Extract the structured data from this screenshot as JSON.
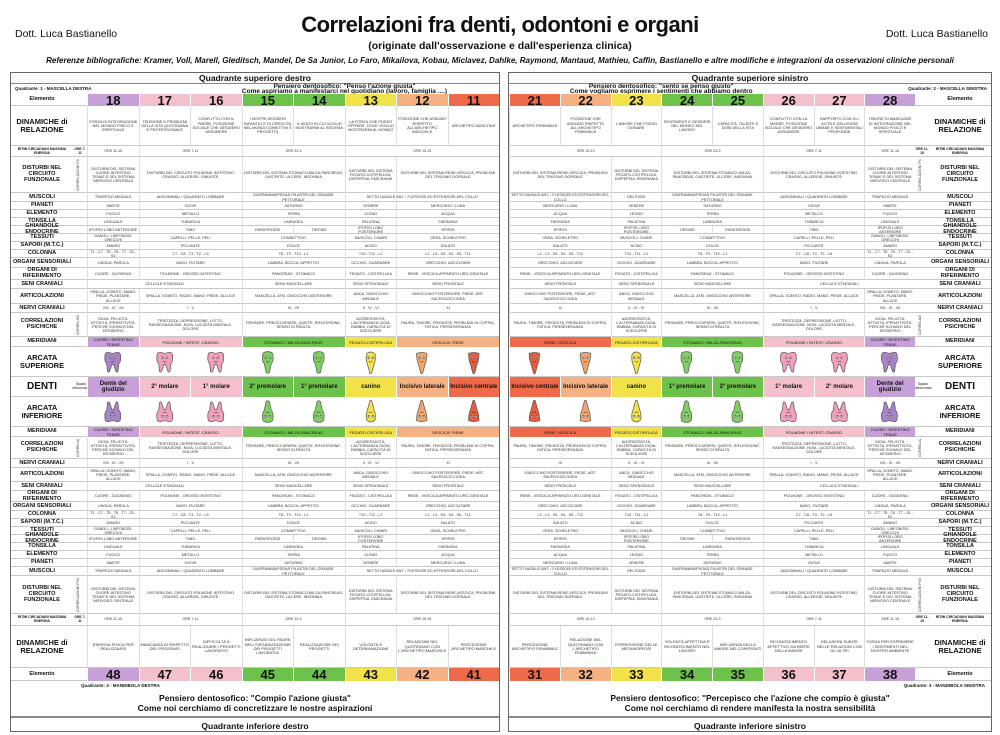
{
  "header": {
    "author_left": "Dott. Luca Bastianello",
    "author_right": "Dott. Luca Bastianello",
    "title": "Correlazioni fra denti, odontoni e organi",
    "subtitle": "(originate dall'osservazione e dall'esperienza clinica)",
    "references": "Referenze bibliografiche: Kramer, Voll, Marell, Gleditsch, Mandel, De Sa Junior, Lo Faro, Mikailova, Kobau, Miclavez, Dahlke, Raymond, Mantaud, Mathieu, Caffin, Bastianello e altre modifiche e integrazioni da osservazioni cliniche personali"
  },
  "colors": {
    "purple": "#c8a0d8",
    "pink": "#f4c0cc",
    "green": "#6cc24a",
    "yellow": "#f2e24a",
    "peach": "#f6b183",
    "red": "#ee6a4a",
    "gray": "#e8e8e8"
  },
  "left": {
    "quadrant_top": "Quadrante superiore destro",
    "quadrant_bottom": "Quadrante inferiore destro",
    "quad_label_top": "Quadrante: 1 - MASCELLA DESTRA",
    "quad_label_bottom": "Quadrante: 4 - MANDIBOLA DESTRA",
    "pens_top_1": "Pensiero dentosofico: \"Penso l'azione giusta\"",
    "pens_top_2": "Come aspiriamo a manifestarci nel quotidiano (lavoro, famiglia ....)",
    "pens_bot_1": "Pensiero dentosofico: \"Compio l'azione giusta\"",
    "pens_bot_2": "Come noi cerchiamo di concretizzare le nostre aspirazioni",
    "upper_numbers": [
      "18",
      "17",
      "16",
      "15",
      "14",
      "13",
      "12",
      "11"
    ],
    "lower_numbers": [
      "48",
      "47",
      "46",
      "45",
      "44",
      "43",
      "42",
      "41"
    ],
    "upper_colors": [
      "purple",
      "pink",
      "pink",
      "green",
      "green",
      "yellow",
      "peach",
      "red"
    ],
    "lower_colors": [
      "purple",
      "pink",
      "pink",
      "green",
      "green",
      "yellow",
      "peach",
      "red"
    ],
    "tooth_names": [
      "Dente del giudizio",
      "2° molare",
      "1° molare",
      "2° premolare",
      "1° premolare",
      "canino",
      "Incisivo laterale",
      "Incisivo centrale"
    ],
    "dinamiche_up": [
      "FORZA DI INTEGRAZIONE NEL MONDO FISICO E SPIRITUALE",
      "TENSIONE E PROBLEMI DELLA VITA QUOTIDIANA E PROFESSIONALE",
      "CONFLITTO CON IL PADRE, POSIZIONE SOCIALE CHE DESIDERO ASSUMERE",
      "I NOSTRI DESIDERI INFANTILI E DI CRESCITA NEL MONDO (OBIETTIVI E PROGETTI)",
      "IL MODO IN CUI VOGLIO MOSTRARMI AL SISTEMA",
      "LA FORZA CHE POSSO OFFRIRE, DOVE VOGLIO MOSTRARMI AL MONDO",
      "POSIZIONE CHE ASSUMO RISPETTO ALL'ARCHETIPO MASCHILE",
      "ARCHETIPO MASCHILE"
    ],
    "dinamiche_low": [
      "ENERGIA FISICA PER REALIZZARSI",
      "MANCANZA DI RISPETTO DEL PROSSIMO",
      "DIFFICOLTÀ A REALIZZARE I PROGETTI LAVORATIVI",
      "INFLUENZE DEL PADRE NELL'ORGANIZZAZIONE DEI PROGETTI LAVORATIVI",
      "REALIZZAZIONE DEI PROGETTI",
      "VOLONTÀ E DETERMINAZIONE",
      "RELAZIONE NEL QUOTIDIANO CON L'ARCHETIPO MASCHILE",
      "PERCEZIONE ARCHETIPO MASCHILE"
    ],
    "meridiani_up": [
      "CUORE / INTESTINO TENUE",
      "POLMONE / INTEST. CRASSO",
      "STOMACO / MILZA-PANCREAS",
      "FEGATO-CISTIFELLEA",
      "VESCICA / RENE"
    ],
    "meridiani_low": [
      "CUORE / INTESTINO TENUE",
      "POLMONE / INTEST. CRASSO",
      "STOMACO / MILZA-PANCREAS",
      "FEGATO-CISTIFELLEA",
      "VESCICA / RENE"
    ],
    "spazio": "Spazio retromolare",
    "elemento": "Elemento"
  },
  "right": {
    "quadrant_top": "Quadrante superiore sinistro",
    "quadrant_bottom": "Quadrante inferiore sinistro",
    "quad_label_top": "Quadrante: 2 - MASCELLA SINISTRA",
    "quad_label_bottom": "Quadrante: 3 - MANDIBOLA SINISTRA",
    "pens_top_1": "Pensiero dentosofico: \"sento se penso giusto\"",
    "pens_top_2": "Come vogliamo esprimere i sentimenti che abbiamo dentro",
    "pens_bot_1": "Pensiero dentosofico: \"Percepisco che l'azione che compio è giusta\"",
    "pens_bot_2": "Come noi cerchiamo di rendere manifesta la nostra sensibilità",
    "upper_numbers": [
      "21",
      "22",
      "23",
      "24",
      "25",
      "26",
      "27",
      "28"
    ],
    "lower_numbers": [
      "31",
      "32",
      "33",
      "34",
      "35",
      "36",
      "37",
      "38"
    ],
    "upper_colors": [
      "red",
      "peach",
      "yellow",
      "green",
      "green",
      "pink",
      "pink",
      "purple"
    ],
    "lower_colors": [
      "red",
      "peach",
      "yellow",
      "green",
      "green",
      "pink",
      "pink",
      "purple"
    ],
    "tooth_names": [
      "Incisivo centrale",
      "Incisivo laterale",
      "canino",
      "1° premolare",
      "2° premolare",
      "1° molare",
      "2° molare",
      "Dente del giudizio"
    ],
    "dinamiche_up": [
      "ARCHETIPO FEMMINILE",
      "POSIZIONE CHE ASSUMO RISPETTO ALL'ARCHETIPO FEMMINILE",
      "L'AMORE CHE POSSO DONARE",
      "SENTIMENTI E DESIDERI NEL MONDO DEL LAVORO",
      "CAPACITÀ, TALENTI E DONI DELLA VITA",
      "CONFLITTO CON LA MADRE, POSIZIONE SOCIALE CHE DESIDERO ASSUMERE",
      "RAPPORTO CON GLI ALTRI E DELUSIONI UMANE E SENTIMENTALI PROFONDE",
      "TIMORE DI MANCANZE DI INTEGRAZIONE NEL MONDO FISICO E SPIRITUALE"
    ],
    "dinamiche_low": [
      "PERCEZIONE ARCHETIPO FEMMINILE",
      "RELAZIONE NEL QUOTIDIANO CON L'ARCHETIPO FEMMINILE",
      "ESPRESSIONE DELLE METAMORFOSI",
      "VOLONTÀ AFFETTIVA E RICONOSCIMENTO NEL LAVORO",
      "INFLUENZA DELLA MADRE NEI CONFRONTI",
      "RICONOSCIMENTO AFFETTIVO DA PARTE DELLA MADRE",
      "DELUSIONI SUBITE NELLE RELAZIONI CON GLI ALTRI",
      "FORZA PER ESPRIMERE I SENTIMENTI NEL NOSTRO AMBIENTE"
    ],
    "meridiani_up": [
      "RENE / VESCICA",
      "FEGATO-CISTIFELLEA",
      "STOMACO / MILZA-PANCREAS",
      "POLMONE / INTEST. CRASSO",
      "CUORE / INTESTINO TENUE"
    ],
    "meridiani_low": [
      "RENE / VESCICA",
      "FEGATO-CISTIFELLEA",
      "STOMACO / MILZA-PANCREAS",
      "POLMONE / INTEST. CRASSO",
      "CUORE / INTESTINO TENUE"
    ],
    "spazio": "Spazio retromolare",
    "elemento": "Elemento"
  },
  "row_labels": {
    "dinamiche": "DINAMICHE di RELAZIONE",
    "ritmi": "RITMI CIRCADIANI MASSIMA ENERGIA",
    "disturbi": "DISTURBI NEL CIRCUITO FUNZIONALE",
    "muscoli": "MUSCOLI",
    "pianeti": "PIANETI",
    "elemento_fisico": "ELEMENTO",
    "tonsilla": "TONSILLA",
    "ghiandole": "GHIANDOLE ENDOCRINE",
    "tessuti": "TESSUTI",
    "sapori": "SAPORI (M.T.C.)",
    "colonna": "COLONNA",
    "organi_sens": "ORGANI SENSORIALI",
    "organi_rif": "ORGANI DI RIFERIMENTO",
    "seni": "SENI CRANIALI",
    "articolazioni": "ARTICOLAZIONI",
    "nervi": "NERVI CRANIALI",
    "correlazioni": "CORRELAZIONI PSICHICHE",
    "meridiani": "MERIDIANI",
    "arcata_sup": "ARCATA SUPERIORE",
    "denti": "DENTI",
    "arcata_inf": "ARCATA INFERIORE"
  },
  "cells": {
    "ore": [
      "ORE 11-15",
      "ORE 7-11",
      "ORE 23-3",
      "ORE 15-19"
    ],
    "ore_r": [
      "ORE 15-19",
      "ORE 23-3",
      "ORE 7-11",
      "ORE 11-15"
    ],
    "muscoli": [
      "TRAPEZIO MEDIALE",
      "ADDOMINALI / QUADRATO LOMBARE",
      "DIAFRAMMA/PSOAS PILASTRI DEL GRANDE PETTORALE",
      "SETTO NASALE ANT. / FLESSORI ED ESTENSORI DEL COLLO"
    ],
    "muscoli_r": [
      "SETTO NASALE ANT. / FLESSORI ED ESTENSORI DEL COLLO",
      "DELTOIDE",
      "DIAFRAMMA/PSOAS PILASTRI DEL GRANDE PETTORALE",
      "ADDOMINALI / QUADRATO LOMBARE",
      "TRAPEZIO MEDIALE"
    ],
    "pianeti": [
      "MARTE",
      "GIOVE",
      "SATURNO",
      "VENERE",
      "MERCURIO / LUNA"
    ],
    "elemento": [
      "FUOCO",
      "METALLO",
      "TERRA",
      "LEGNO",
      "ACQUA"
    ],
    "tonsilla": [
      "LINGUALE",
      "TUBARICA",
      "LARINGEA",
      "PALATINA",
      "FARINGEA"
    ],
    "ghiandole": [
      "IPOFISI LOBO ANTERIORE",
      "TIMO",
      "PARATIROIDE",
      "TIROIDE",
      "IPOFISI LOBO POSTERIORE",
      "EPIFISI"
    ],
    "tessuti": [
      "GANGLI, LINFONODI, ORECCHI",
      "CAPELLI, PELLE, PELI",
      "CONNETTIVO",
      "MUSCOLI, CHIARI",
      "OSSA, SCHELETRO"
    ],
    "sapori": [
      "AMARO",
      "PICCANTE",
      "DOLCE",
      "ACIDO",
      "SALATO"
    ],
    "colonna": [
      "T1 - C7 - T5 - T6 - T7 - S1 - S2",
      "C7 - C8 - T3 - T2 - L5",
      "T8 - T9 - T10 - L1",
      "T10 - T11 - L2",
      "L2 - L3 - S3 - S4 - S5 - T11"
    ],
    "organi_sens": [
      "LINGUA, PAROLA",
      "NASO, FIUTARE",
      "LABBRA, BOCCA, APPETITO",
      "OCCHIO, GUARDARE",
      "ORECCHIO, ASCOLTARE"
    ],
    "organi_rif": [
      "CUORE - DUODENO",
      "POLMONE - GROSSO INTESTINO",
      "PANCREAS - STOMACO",
      "FEGATO - CISTIFELLEA",
      "RENE - VESCICA APPARATO URO-GENITALE"
    ],
    "seni": [
      "CELLULE ETMOIDALI",
      "SENO MASCELLARE",
      "SENO SFENOIDALE",
      "SENO FRONTALE"
    ],
    "articolazioni": [
      "SPALLA, GOMITO, MANO, PIEDE, PLANTARE, ALLUCE",
      "SPALLA, GOMITO, RADIO, MANO, PIEDE, ALLUCE",
      "MASCELLA, ATM, GINOCCHIO ANTERIORE",
      "ANCA, GINOCCHIO MEDIALE",
      "GINOCCHIO POSTERIORE, PIEDE, ART. SACROCOCCIGEA"
    ],
    "nervi": [
      "VIII - IX - XII",
      "I - V",
      "III - VII",
      "II - IV - VI",
      "XI"
    ],
    "correlazioni": [
      "GIOIA, FELICITÀ, ATTIVITÀ, IPERATTIVITÀ, PERCHÈ SCHIAVO DEL DESIDERIO",
      "TRISTEZZA, DEPRESSIONE, LUTTO, RASSEGNAZIONE, NOIA, LUCIDITÀ MENTALE, DOLORE",
      "PENSARE, PREOCCUPARSI, QUIETE, RIFLESSIONE, SENSO DI REALTÀ",
      "AGGRESSIVITÀ, L'ALTERNANZA GIOIA-RABBIA, CAPACITÀ DI SCEGLIERE",
      "PAURA, TIMORE, FRIGIDITÀ, PROBLEMI DI COPPIA, FATICA, PERSEVERANZA"
    ],
    "disturbi": [
      "DISTURBI DEL SISTEMA CUORE-INTESTINO TENUE E DEL SISTEMA NERVOSO CENTRALE",
      "DISTURBI DEL CIRCUITO POLMONE-INTESTINO CRASSO, ALLERGIE, SINUSITE",
      "DISTURBI DEL SISTEMA STOMACO-MILZA-PANCREAS, GASTRITE, ULCERE, INSONNIA",
      "DISTURBI DEL SISTEMA FEGATO-CISTIFELLEA, DISPEPSIA, EMICRANIA",
      "DISTURBI DEL SISTEMA RENE-VESCICA, PROBLEMI DEL TRIGONO DORSALE"
    ]
  }
}
